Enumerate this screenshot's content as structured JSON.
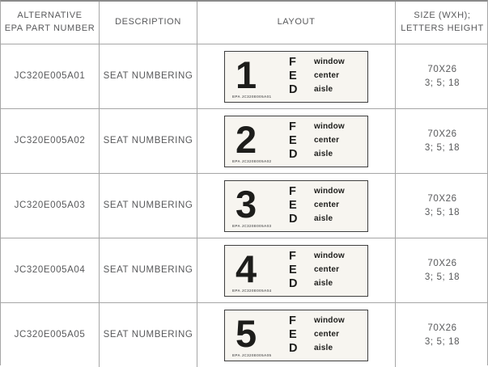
{
  "header": {
    "part_number_line1": "ALTERNATIVE",
    "part_number_line2": "EPA PART NUMBER",
    "description": "DESCRIPTION",
    "layout": "LAYOUT",
    "size_line1": "SIZE (WXH);",
    "size_line2": "LETTERS HEIGHT"
  },
  "legend": {
    "letters": [
      "F",
      "E",
      "D"
    ],
    "positions": [
      "window",
      "center",
      "aisle"
    ]
  },
  "rows": [
    {
      "part_number": "JC320E005A01",
      "description": "SEAT NUMBERING",
      "digit": "1",
      "layout_code": "EPA JC320E005A01",
      "size_wxh": "70X26",
      "letters_height": "3; 5; 18"
    },
    {
      "part_number": "JC320E005A02",
      "description": "SEAT NUMBERING",
      "digit": "2",
      "layout_code": "EPA JC320E005A02",
      "size_wxh": "70X26",
      "letters_height": "3; 5; 18"
    },
    {
      "part_number": "JC320E005A03",
      "description": "SEAT NUMBERING",
      "digit": "3",
      "layout_code": "EPA JC320E005A03",
      "size_wxh": "70X26",
      "letters_height": "3; 5; 18"
    },
    {
      "part_number": "JC320E005A04",
      "description": "SEAT NUMBERING",
      "digit": "4",
      "layout_code": "EPA JC320E005A04",
      "size_wxh": "70X26",
      "letters_height": "3; 5; 18"
    },
    {
      "part_number": "JC320E005A05",
      "description": "SEAT NUMBERING",
      "digit": "5",
      "layout_code": "EPA JC320E005A05",
      "size_wxh": "70X26",
      "letters_height": "3; 5; 18"
    }
  ],
  "colors": {
    "grid_line": "#a6a6a6",
    "text": "#58595b",
    "label_background": "#f7f5f0",
    "label_border": "#3f3f3f",
    "label_text": "#1d1d1b"
  }
}
